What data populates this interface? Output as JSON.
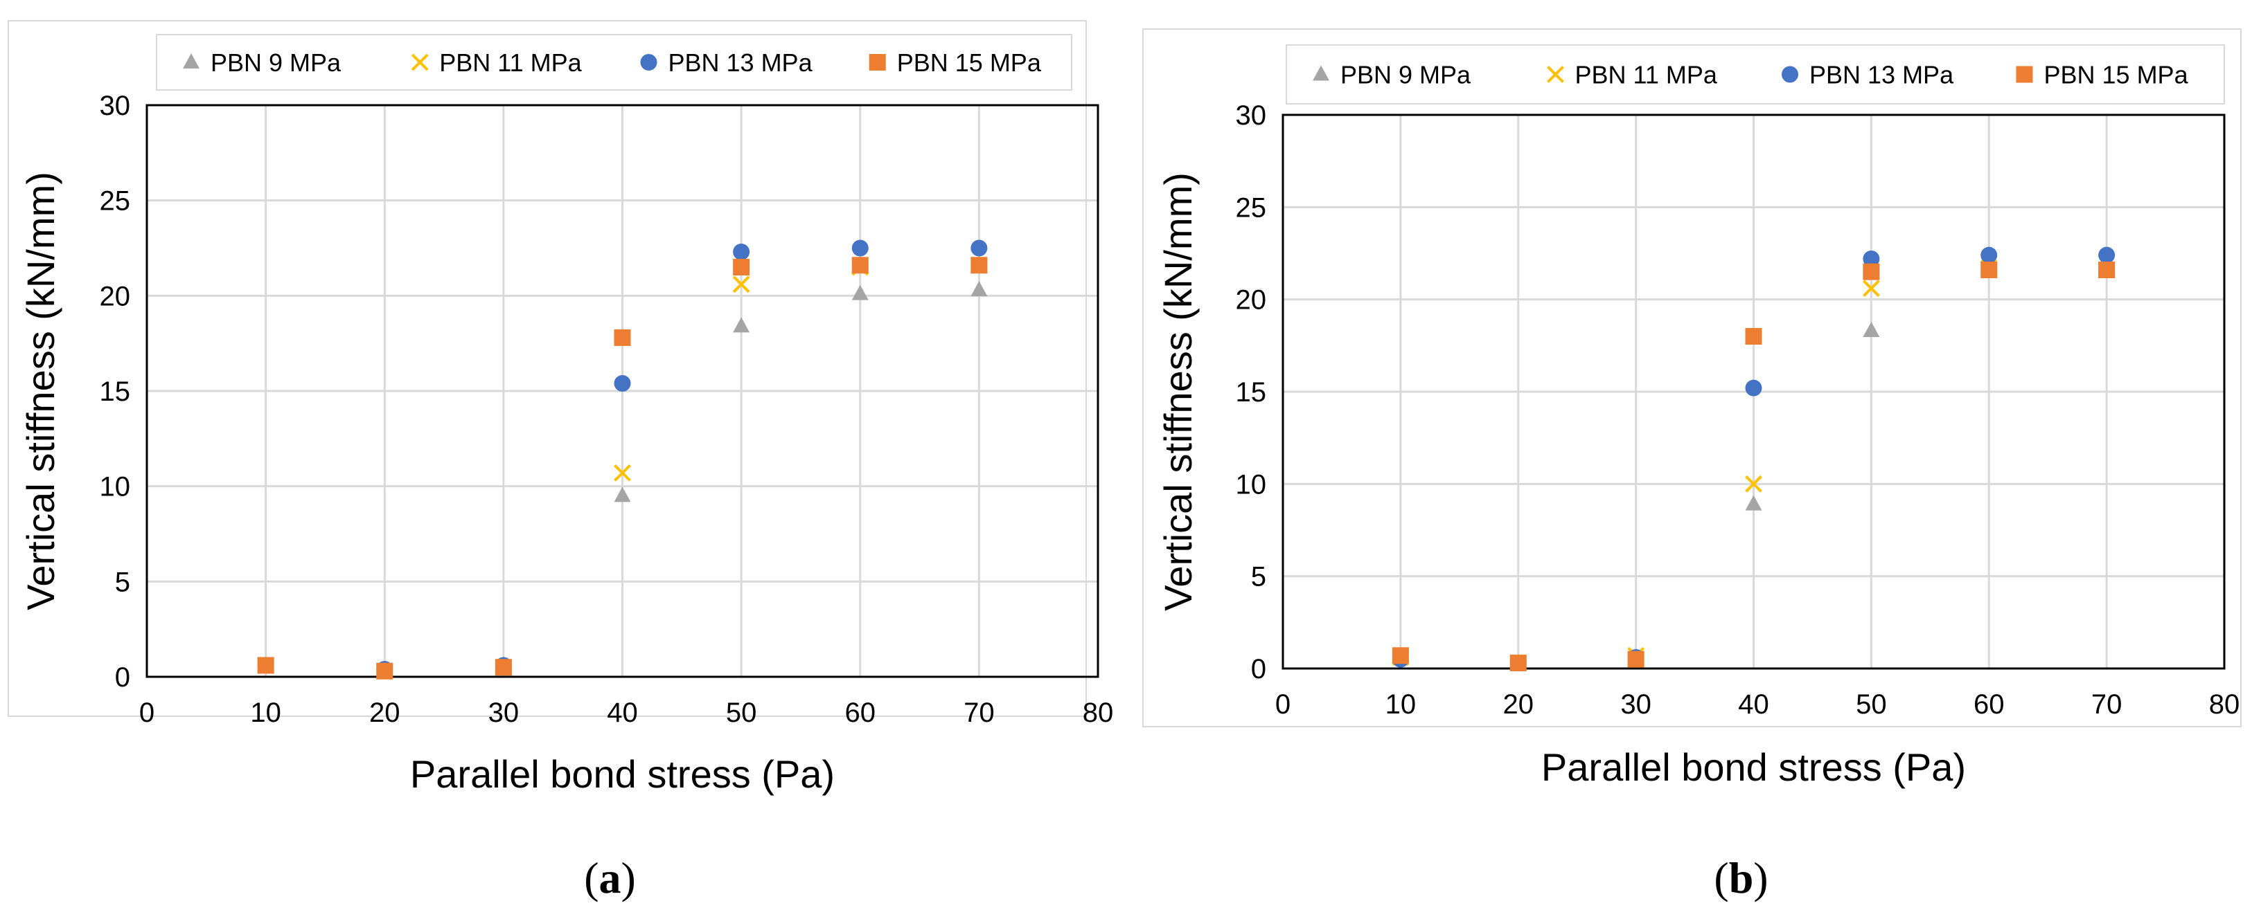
{
  "chart_data": [
    {
      "type": "scatter",
      "panel_label": "a",
      "xlabel": "Parallel bond stress (Pa)",
      "ylabel": "Vertical stiffness (kN/mm)",
      "xlim": [
        0,
        80
      ],
      "ylim": [
        0,
        30
      ],
      "xticks": [
        0,
        10,
        20,
        30,
        40,
        50,
        60,
        70,
        80
      ],
      "yticks": [
        0,
        5,
        10,
        15,
        20,
        25,
        30
      ],
      "grid": true,
      "legend_position": "top",
      "series": [
        {
          "name": "PBN 9 MPa",
          "marker": "triangle",
          "color": "#a5a5a5",
          "x": [
            10,
            20,
            30,
            40,
            50,
            60,
            70
          ],
          "y": [
            0.6,
            0.3,
            0.6,
            9.5,
            18.4,
            20.1,
            20.3
          ]
        },
        {
          "name": "PBN 11 MPa",
          "marker": "x",
          "color": "#ffc000",
          "x": [
            10,
            20,
            30,
            40,
            50,
            60,
            70
          ],
          "y": [
            0.6,
            0.3,
            0.5,
            10.7,
            20.6,
            21.5,
            21.6
          ]
        },
        {
          "name": "PBN 13 MPa",
          "marker": "circle",
          "color": "#4472c4",
          "x": [
            10,
            20,
            30,
            40,
            50,
            60,
            70
          ],
          "y": [
            0.6,
            0.4,
            0.6,
            15.4,
            22.3,
            22.5,
            22.5
          ]
        },
        {
          "name": "PBN 15 MPa",
          "marker": "square",
          "color": "#ed7d31",
          "x": [
            10,
            20,
            30,
            40,
            50,
            60,
            70
          ],
          "y": [
            0.6,
            0.3,
            0.5,
            17.8,
            21.5,
            21.6,
            21.6
          ]
        }
      ]
    },
    {
      "type": "scatter",
      "panel_label": "b",
      "xlabel": "Parallel bond stress (Pa)",
      "ylabel": "Vertical stiffness (kN/mm)",
      "xlim": [
        0,
        80
      ],
      "ylim": [
        0,
        30
      ],
      "xticks": [
        0,
        10,
        20,
        30,
        40,
        50,
        60,
        70,
        80
      ],
      "yticks": [
        0,
        5,
        10,
        15,
        20,
        25,
        30
      ],
      "grid": true,
      "legend_position": "top",
      "series": [
        {
          "name": "PBN 9 MPa",
          "marker": "triangle",
          "color": "#a5a5a5",
          "x": [
            10,
            20,
            30,
            40,
            50,
            60,
            70
          ],
          "y": [
            0.6,
            0.3,
            0.6,
            8.9,
            18.3,
            21.7,
            21.6
          ]
        },
        {
          "name": "PBN 11 MPa",
          "marker": "x",
          "color": "#ffc000",
          "x": [
            10,
            20,
            30,
            40,
            50,
            60,
            70
          ],
          "y": [
            0.6,
            0.3,
            0.7,
            10.0,
            20.6,
            21.7,
            21.6
          ]
        },
        {
          "name": "PBN 13 MPa",
          "marker": "circle",
          "color": "#4472c4",
          "x": [
            10,
            20,
            30,
            40,
            50,
            60,
            70
          ],
          "y": [
            0.5,
            0.3,
            0.6,
            15.2,
            22.2,
            22.4,
            22.4
          ]
        },
        {
          "name": "PBN 15 MPa",
          "marker": "square",
          "color": "#ed7d31",
          "x": [
            10,
            20,
            30,
            40,
            50,
            60,
            70
          ],
          "y": [
            0.7,
            0.3,
            0.5,
            18.0,
            21.5,
            21.6,
            21.6
          ]
        }
      ]
    }
  ]
}
